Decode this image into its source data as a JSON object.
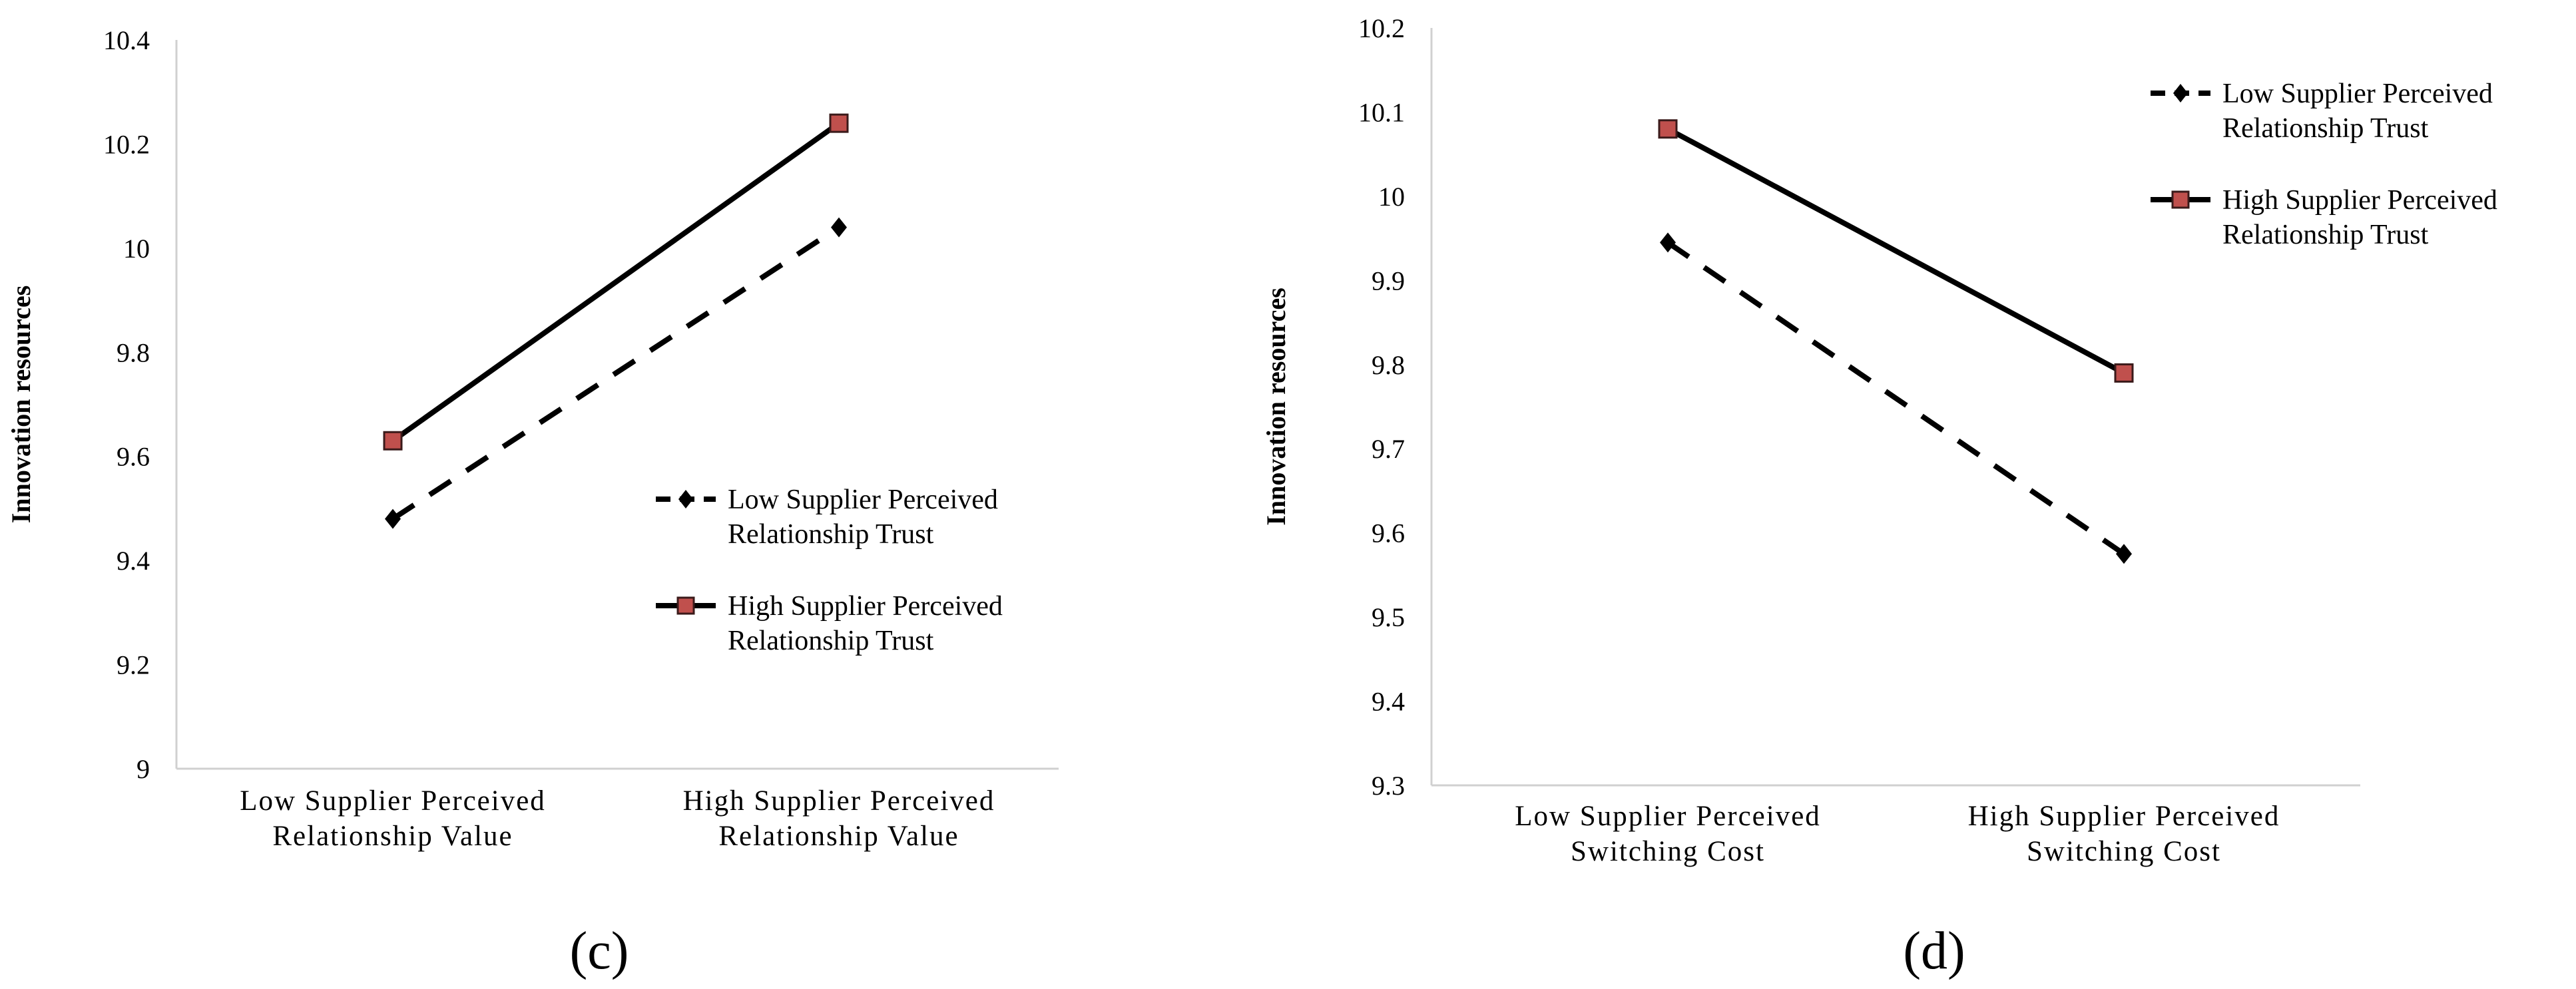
{
  "chart_data": [
    {
      "type": "line",
      "panel_label": "(c)",
      "ylabel": "Innovation resources",
      "ylim": [
        9,
        10.4
      ],
      "ytick_labels": [
        "9",
        "9.2",
        "9.4",
        "9.6",
        "9.8",
        "10",
        "10.2",
        "10.4"
      ],
      "yticks": [
        9,
        9.2,
        9.4,
        9.6,
        9.8,
        10,
        10.2,
        10.4
      ],
      "categories": [
        [
          "Low Supplier Perceived",
          "Relationship  Value"
        ],
        [
          "High Supplier Perceived",
          "Relationship  Value"
        ]
      ],
      "grid": false,
      "legend_position": "center-right",
      "series": [
        {
          "name": "Low Supplier Perceived Relationship Trust",
          "legend_lines": [
            "Low Supplier Perceived",
            "Relationship  Trust"
          ],
          "style": "dashed",
          "marker": "diamond",
          "color": "#000000",
          "values": [
            9.48,
            10.04
          ]
        },
        {
          "name": "High Supplier Perceived Relationship Trust",
          "legend_lines": [
            "High Supplier Perceived",
            "Relationship  Trust"
          ],
          "style": "solid",
          "marker": "square",
          "color": "#000000",
          "marker_color": "#c0504d",
          "values": [
            9.63,
            10.24
          ]
        }
      ]
    },
    {
      "type": "line",
      "panel_label": "(d)",
      "ylabel": "Innovation resources",
      "ylim": [
        9.3,
        10.2
      ],
      "ytick_labels": [
        "9.3",
        "9.4",
        "9.5",
        "9.6",
        "9.7",
        "9.8",
        "9.9",
        "10",
        "10.1",
        "10.2"
      ],
      "yticks": [
        9.3,
        9.4,
        9.5,
        9.6,
        9.7,
        9.8,
        9.9,
        10,
        10.1,
        10.2
      ],
      "categories": [
        [
          "Low Supplier Perceived",
          "Switching Cost"
        ],
        [
          "High Supplier Perceived",
          "Switching Cost"
        ]
      ],
      "grid": false,
      "legend_position": "top-right",
      "series": [
        {
          "name": "Low Supplier Perceived Relationship Trust",
          "legend_lines": [
            "Low Supplier Perceived",
            "Relationship  Trust"
          ],
          "style": "dashed",
          "marker": "diamond",
          "color": "#000000",
          "values": [
            9.945,
            9.575
          ]
        },
        {
          "name": "High Supplier Perceived Relationship Trust",
          "legend_lines": [
            "High Supplier Perceived",
            "Relationship  Trust"
          ],
          "style": "solid",
          "marker": "square",
          "color": "#000000",
          "marker_color": "#c0504d",
          "values": [
            10.08,
            9.79
          ]
        }
      ]
    }
  ]
}
